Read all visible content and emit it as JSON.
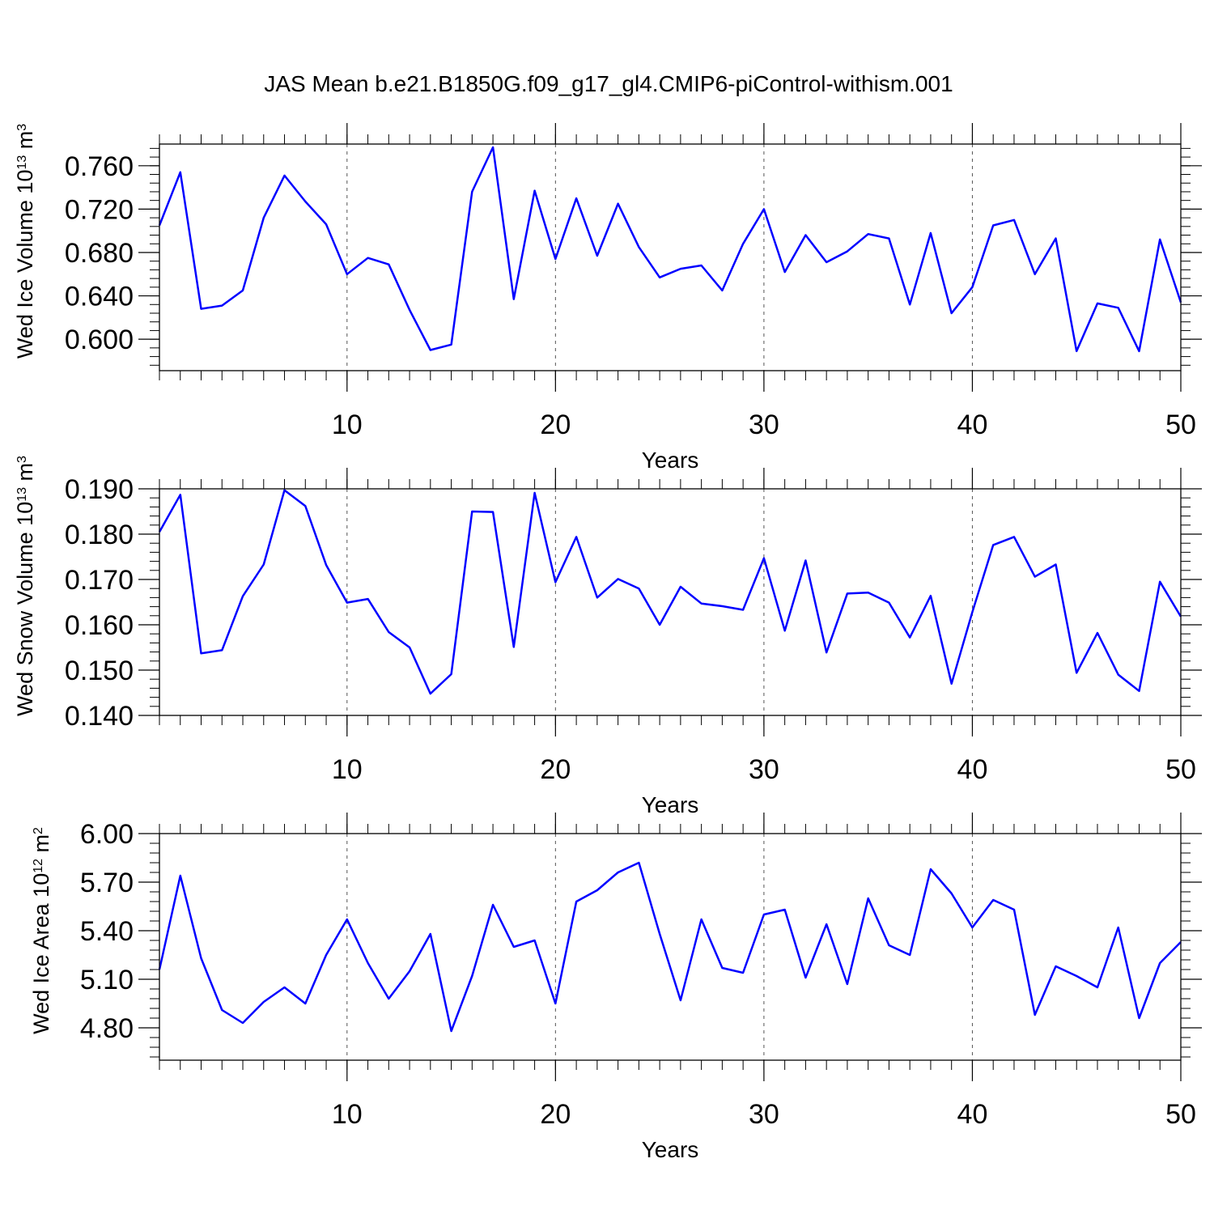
{
  "title": "JAS Mean b.e21.B1850G.f09_g17_gl4.CMIP6-piControl-withism.001",
  "colors": {
    "line": "#0000ff",
    "axis": "#000000",
    "grid": "#555555"
  },
  "chart_data": [
    {
      "type": "line",
      "ylabel": {
        "prefix": "Wed Ice Volume 10",
        "exponent": "13",
        "unit": " m",
        "unit_exponent": "3"
      },
      "xlabel": "Years",
      "xlim": [
        1,
        50
      ],
      "ylim": [
        0.571,
        0.78
      ],
      "grid": "x-dashed",
      "yticks": [
        0.6,
        0.64,
        0.68,
        0.72,
        0.76
      ],
      "ytick_labels": [
        "0.600",
        "0.640",
        "0.680",
        "0.720",
        "0.760"
      ],
      "xticks": [
        10,
        20,
        30,
        40,
        50
      ],
      "xtick_labels": [
        "10",
        "20",
        "30",
        "40",
        "50"
      ],
      "series": [
        {
          "x": [
            1,
            2,
            3,
            4,
            5,
            6,
            7,
            8,
            9,
            10,
            11,
            12,
            13,
            14,
            15,
            16,
            17,
            18,
            19,
            20,
            21,
            22,
            23,
            24,
            25,
            26,
            27,
            28,
            29,
            30,
            31,
            32,
            33,
            34,
            35,
            36,
            37,
            38,
            39,
            40,
            41,
            42,
            43,
            44,
            45,
            46,
            47,
            48,
            49,
            50
          ],
          "values": [
            0.705,
            0.754,
            0.628,
            0.631,
            0.645,
            0.712,
            0.751,
            0.727,
            0.706,
            0.66,
            0.675,
            0.669,
            0.627,
            0.59,
            0.595,
            0.736,
            0.777,
            0.637,
            0.737,
            0.674,
            0.73,
            0.677,
            0.725,
            0.685,
            0.657,
            0.665,
            0.668,
            0.645,
            0.688,
            0.72,
            0.662,
            0.696,
            0.671,
            0.681,
            0.697,
            0.693,
            0.632,
            0.698,
            0.624,
            0.648,
            0.705,
            0.71,
            0.66,
            0.693,
            0.589,
            0.633,
            0.629,
            0.589,
            0.692,
            0.634
          ]
        }
      ]
    },
    {
      "type": "line",
      "ylabel": {
        "prefix": "Wed Snow Volume 10",
        "exponent": "13",
        "unit": " m",
        "unit_exponent": "3"
      },
      "xlabel": "Years",
      "xlim": [
        1,
        50
      ],
      "ylim": [
        0.14,
        0.19
      ],
      "grid": "x-dashed",
      "yticks": [
        0.14,
        0.15,
        0.16,
        0.17,
        0.18,
        0.19
      ],
      "ytick_labels": [
        "0.140",
        "0.150",
        "0.160",
        "0.170",
        "0.180",
        "0.190"
      ],
      "xticks": [
        10,
        20,
        30,
        40,
        50
      ],
      "xtick_labels": [
        "10",
        "20",
        "30",
        "40",
        "50"
      ],
      "series": [
        {
          "x": [
            1,
            2,
            3,
            4,
            5,
            6,
            7,
            8,
            9,
            10,
            11,
            12,
            13,
            14,
            15,
            16,
            17,
            18,
            19,
            20,
            21,
            22,
            23,
            24,
            25,
            26,
            27,
            28,
            29,
            30,
            31,
            32,
            33,
            34,
            35,
            36,
            37,
            38,
            39,
            40,
            41,
            42,
            43,
            44,
            45,
            46,
            47,
            48,
            49,
            50
          ],
          "values": [
            0.1805,
            0.1887,
            0.1537,
            0.1544,
            0.1663,
            0.1733,
            0.1897,
            0.1862,
            0.1732,
            0.1649,
            0.1657,
            0.1584,
            0.155,
            0.1448,
            0.1491,
            0.185,
            0.1849,
            0.1551,
            0.1891,
            0.1694,
            0.1794,
            0.166,
            0.1701,
            0.168,
            0.16,
            0.1684,
            0.1647,
            0.1641,
            0.1633,
            0.1747,
            0.1587,
            0.1742,
            0.1539,
            0.1669,
            0.1671,
            0.1649,
            0.1572,
            0.1664,
            0.147,
            0.1628,
            0.1776,
            0.1794,
            0.1706,
            0.1733,
            0.1494,
            0.1582,
            0.149,
            0.1454,
            0.1695,
            0.1618
          ]
        }
      ]
    },
    {
      "type": "line",
      "ylabel": {
        "prefix": "Wed Ice Area 10",
        "exponent": "12",
        "unit": " m",
        "unit_exponent": "2"
      },
      "xlabel": "Years",
      "xlim": [
        1,
        50
      ],
      "ylim": [
        4.6,
        6.0
      ],
      "grid": "x-dashed",
      "yticks": [
        4.8,
        5.1,
        5.4,
        5.7,
        6.0
      ],
      "ytick_labels": [
        "4.80",
        "5.10",
        "5.40",
        "5.70",
        "6.00"
      ],
      "xticks": [
        10,
        20,
        30,
        40,
        50
      ],
      "xtick_labels": [
        "10",
        "20",
        "30",
        "40",
        "50"
      ],
      "series": [
        {
          "x": [
            1,
            2,
            3,
            4,
            5,
            6,
            7,
            8,
            9,
            10,
            11,
            12,
            13,
            14,
            15,
            16,
            17,
            18,
            19,
            20,
            21,
            22,
            23,
            24,
            25,
            26,
            27,
            28,
            29,
            30,
            31,
            32,
            33,
            34,
            35,
            36,
            37,
            38,
            39,
            40,
            41,
            42,
            43,
            44,
            45,
            46,
            47,
            48,
            49,
            50
          ],
          "values": [
            5.16,
            5.74,
            5.23,
            4.91,
            4.83,
            4.96,
            5.05,
            4.95,
            5.25,
            5.47,
            5.2,
            4.98,
            5.15,
            5.38,
            4.78,
            5.12,
            5.56,
            5.3,
            5.34,
            4.95,
            5.58,
            5.65,
            5.76,
            5.82,
            5.38,
            4.97,
            5.47,
            5.17,
            5.14,
            5.5,
            5.53,
            5.11,
            5.44,
            5.07,
            5.6,
            5.31,
            5.25,
            5.78,
            5.63,
            5.42,
            5.59,
            5.53,
            4.88,
            5.18,
            5.12,
            5.05,
            5.42,
            4.86,
            5.2,
            5.33
          ]
        }
      ]
    }
  ]
}
